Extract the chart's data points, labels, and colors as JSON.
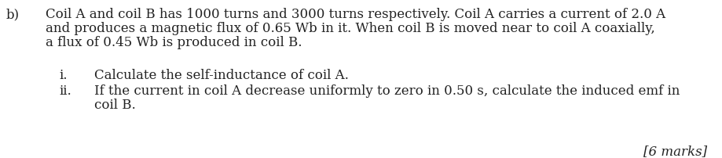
{
  "bg_color": "#ffffff",
  "text_color": "#222222",
  "label_b": "b)",
  "line1": "Coil A and coil B has 1000 turns and 3000 turns respectively. Coil A carries a current of 2.0 A",
  "line2": "and produces a magnetic flux of 0.65 Wb in it. When coil B is moved near to coil A coaxially,",
  "line3": "a flux of 0.45 Wb is produced in coil B.",
  "roman_i": "i.",
  "roman_ii": "ii.",
  "question_i": "Calculate the self-inductance of coil A.",
  "question_ii_line1": "If the current in coil A decrease uniformly to zero in 0.50 s, calculate the induced emf in",
  "question_ii_line2": "coil B.",
  "marks": "[6 marks]",
  "font_size": 12.0,
  "font_family": "DejaVu Serif"
}
